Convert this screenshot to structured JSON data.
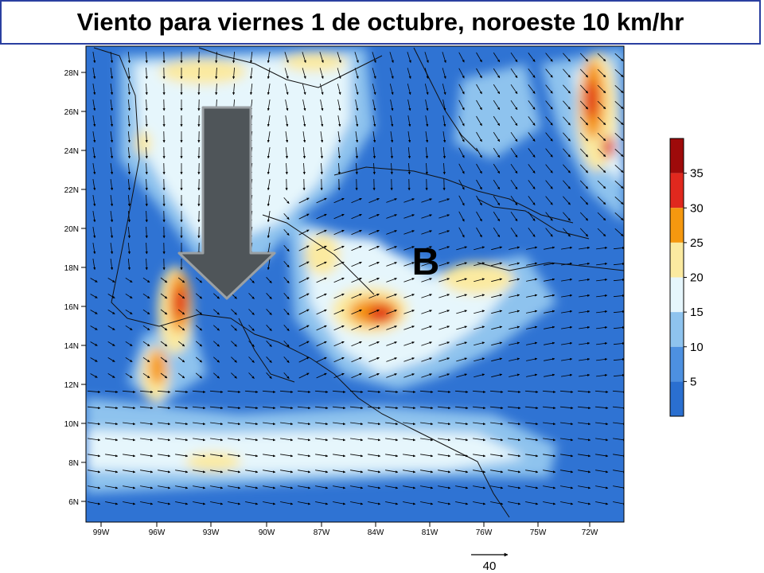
{
  "title": "Viento para viernes 1 de octubre, noroeste 10 km/hr",
  "map_label": "B",
  "lat_ticks": [
    "28N",
    "26N",
    "24N",
    "22N",
    "20N",
    "18N",
    "16N",
    "14N",
    "12N",
    "10N",
    "8N",
    "6N"
  ],
  "lon_ticks": [
    "99W",
    "96W",
    "93W",
    "90W",
    "87W",
    "84W",
    "81W",
    "76W",
    "75W",
    "72W"
  ],
  "colorbar": {
    "labels": [
      "35",
      "30",
      "25",
      "20",
      "15",
      "10",
      "5"
    ],
    "colors": [
      "#9e0a0a",
      "#e0281e",
      "#f5980f",
      "#fbeaa0",
      "#e6f6fc",
      "#8ec3ee",
      "#4d90e0",
      "#2a6fd0"
    ]
  },
  "reference_vector_label": "40",
  "overlay_arrow": {
    "direction": "down",
    "color": "#4f5559"
  }
}
